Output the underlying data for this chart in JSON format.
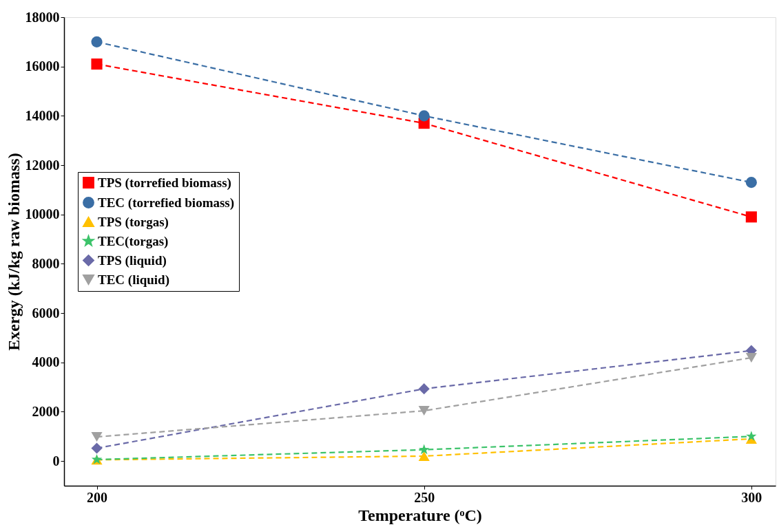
{
  "chart_data": {
    "type": "line",
    "xlabel": "Temperature (ᵒC)",
    "ylabel": "Exergy (kJ/kg raw biomass)",
    "x": [
      200,
      250,
      300
    ],
    "xlim": [
      195,
      303.7
    ],
    "xticks": [
      200,
      250,
      300
    ],
    "ylim": [
      -1000,
      18000
    ],
    "yticks": [
      0,
      2000,
      4000,
      6000,
      8000,
      10000,
      12000,
      14000,
      16000,
      18000
    ],
    "grid": false,
    "legend": "left",
    "line_style": "dashed",
    "series": [
      {
        "name": "TPS (torrefied biomass)",
        "color": "#ff0000",
        "marker": "square",
        "values": [
          16100,
          13700,
          9900
        ]
      },
      {
        "name": "TEC (torrefied biomass)",
        "color": "#3a6ea5",
        "marker": "circle",
        "values": [
          17000,
          14000,
          11300
        ]
      },
      {
        "name": "TPS (torgas)",
        "color": "#ffc000",
        "marker": "triangle",
        "values": [
          50,
          200,
          900
        ]
      },
      {
        "name": "TEC(torgas)",
        "color": "#3cc36a",
        "marker": "star",
        "values": [
          60,
          460,
          1000
        ]
      },
      {
        "name": "TPS (liquid)",
        "color": "#6a6aa8",
        "marker": "diamond",
        "values": [
          520,
          2930,
          4480
        ]
      },
      {
        "name": "TEC (liquid)",
        "color": "#a0a0a0",
        "marker": "triangle-down",
        "values": [
          980,
          2040,
          4190
        ]
      }
    ]
  }
}
